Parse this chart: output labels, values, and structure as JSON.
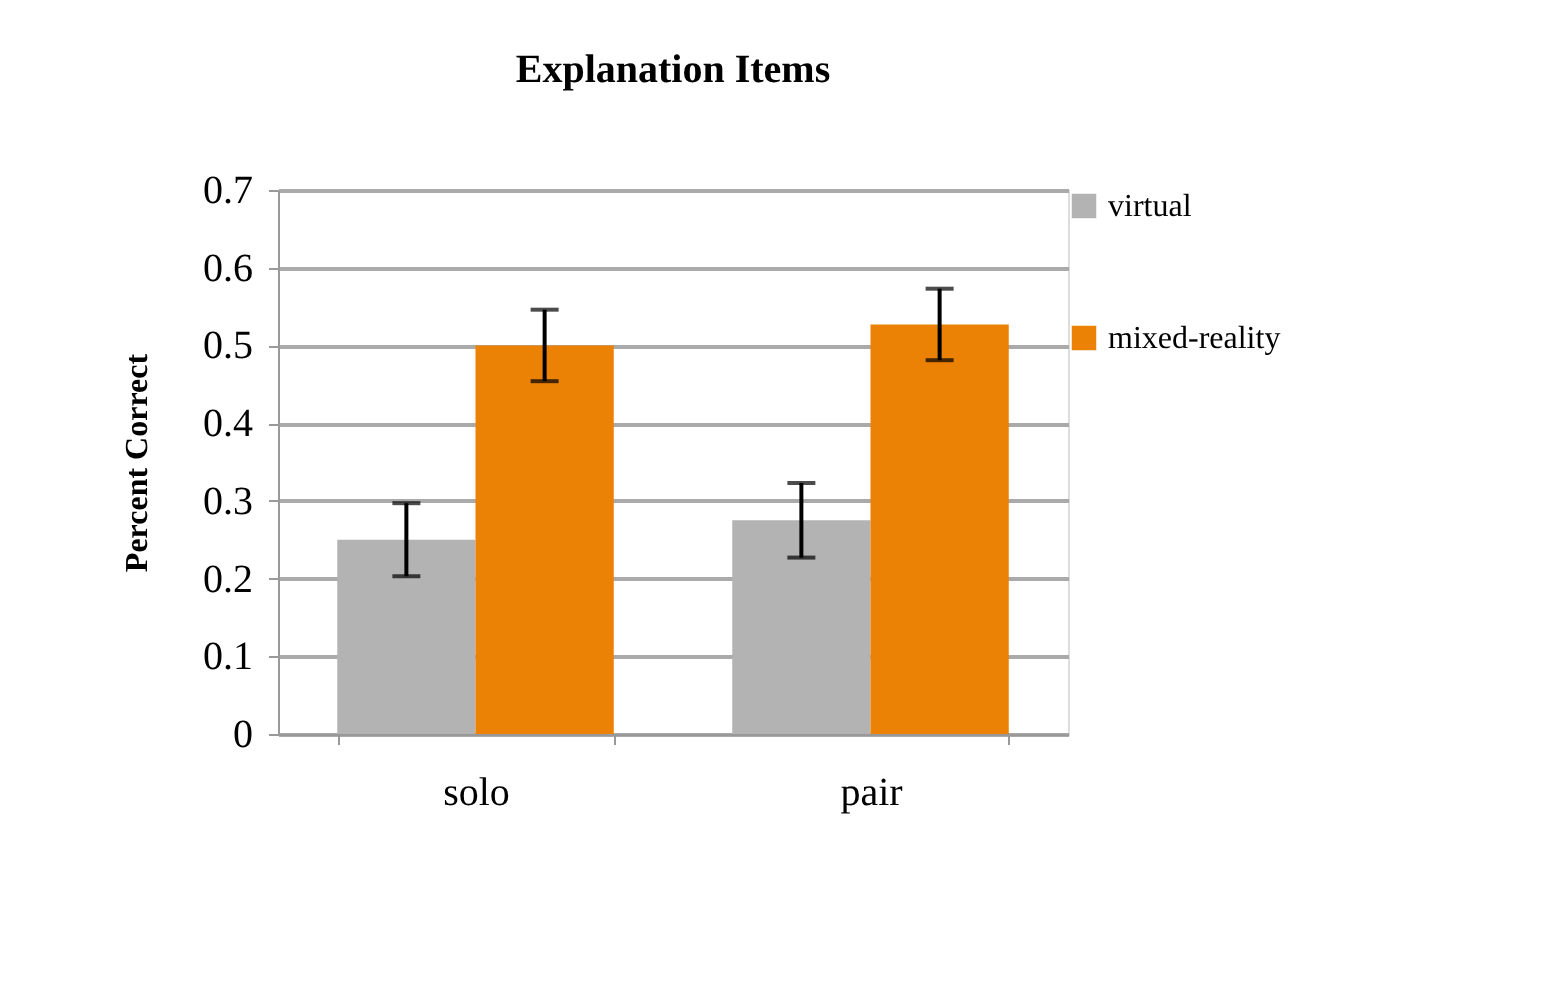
{
  "chart_data": {
    "type": "bar",
    "title": "Explanation Items",
    "ylabel": "Percent Correct",
    "categories": [
      "solo",
      "pair"
    ],
    "series": [
      {
        "name": "virtual",
        "color": "#b3b3b3",
        "values": [
          0.25,
          0.275
        ],
        "errors": [
          0.047,
          0.048
        ]
      },
      {
        "name": "mixed-reality",
        "color": "#eb8105",
        "values": [
          0.5,
          0.527
        ],
        "errors": [
          0.046,
          0.046
        ]
      }
    ],
    "ylim": [
      0,
      0.7
    ],
    "yticks": [
      0,
      0.1,
      0.2,
      0.3,
      0.4,
      0.5,
      0.6,
      0.7
    ],
    "grid": "y",
    "legend": "right"
  }
}
